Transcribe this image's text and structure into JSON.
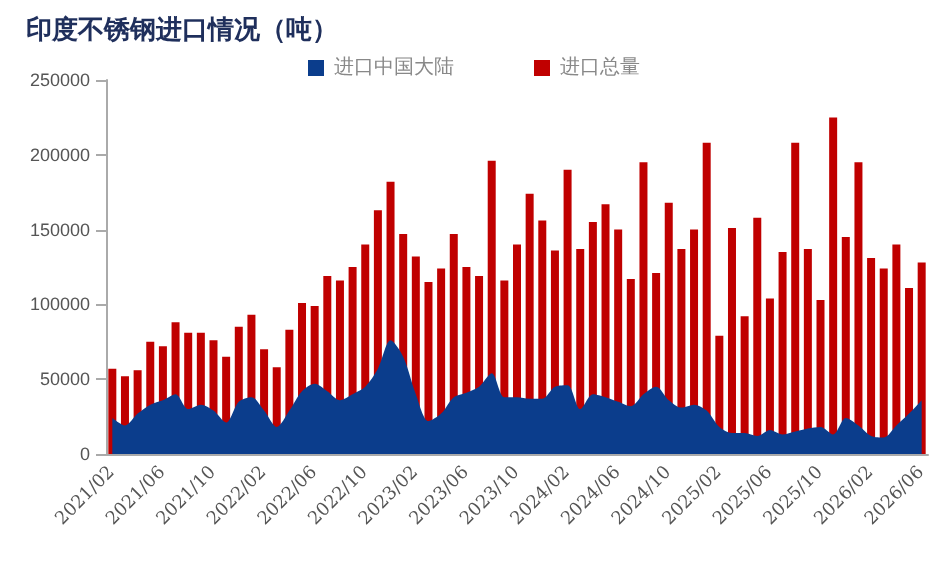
{
  "chart_data": {
    "type": "bar",
    "title": "印度不锈钢进口情况（吨）",
    "categories": [
      "2021/02",
      null,
      null,
      null,
      "2021/06",
      null,
      null,
      null,
      "2021/10",
      null,
      null,
      null,
      "2022/02",
      null,
      null,
      null,
      "2022/06",
      null,
      null,
      null,
      "2022/10",
      null,
      null,
      null,
      "2023/02",
      null,
      null,
      null,
      "2023/06",
      null,
      null,
      null,
      "2023/10",
      null,
      null,
      null,
      "2024/02",
      null,
      null,
      null,
      "2024/06",
      null,
      null,
      null,
      "2024/10",
      null,
      null,
      null,
      "2025/02",
      null,
      null,
      null,
      "2025/06",
      null,
      null,
      null,
      "2025/10",
      null,
      null,
      null,
      "2026/02",
      null,
      null,
      null,
      "2026/06"
    ],
    "series": [
      {
        "name": "进口中国大陆",
        "type": "area",
        "color": "#0b3d8c",
        "values": [
          24000,
          19000,
          27000,
          33000,
          36000,
          40000,
          30000,
          33000,
          29000,
          21000,
          35000,
          38000,
          29000,
          18000,
          29000,
          42000,
          47000,
          42000,
          36000,
          40000,
          45000,
          57000,
          76000,
          65000,
          40000,
          22000,
          27000,
          38000,
          41000,
          45000,
          54000,
          38000,
          38000,
          37000,
          37000,
          45000,
          46000,
          30000,
          40000,
          38000,
          35000,
          32000,
          40000,
          45000,
          36000,
          31000,
          33000,
          29000,
          18000,
          14000,
          14000,
          12000,
          16000,
          13000,
          15000,
          17000,
          18000,
          13000,
          24000,
          19000,
          12000,
          11000,
          19000,
          27000,
          36000
        ]
      },
      {
        "name": "进口总量",
        "color": "#c00000",
        "values": [
          57000,
          52000,
          56000,
          75000,
          72000,
          88000,
          81000,
          81000,
          76000,
          65000,
          85000,
          93000,
          70000,
          58000,
          83000,
          101000,
          99000,
          119000,
          116000,
          125000,
          140000,
          163000,
          182000,
          147000,
          132000,
          115000,
          124000,
          147000,
          125000,
          119000,
          196000,
          116000,
          140000,
          174000,
          156000,
          136000,
          190000,
          137000,
          155000,
          167000,
          150000,
          117000,
          195000,
          121000,
          168000,
          137000,
          150000,
          208000,
          79000,
          151000,
          92000,
          158000,
          104000,
          135000,
          208000,
          137000,
          103000,
          225000,
          145000,
          195000,
          131000,
          124000,
          140000,
          111000,
          128000
        ]
      }
    ],
    "ylim": [
      0,
      250000
    ],
    "yticks": [
      0,
      50000,
      100000,
      150000,
      200000,
      250000
    ],
    "grid": false,
    "legend": "top"
  }
}
